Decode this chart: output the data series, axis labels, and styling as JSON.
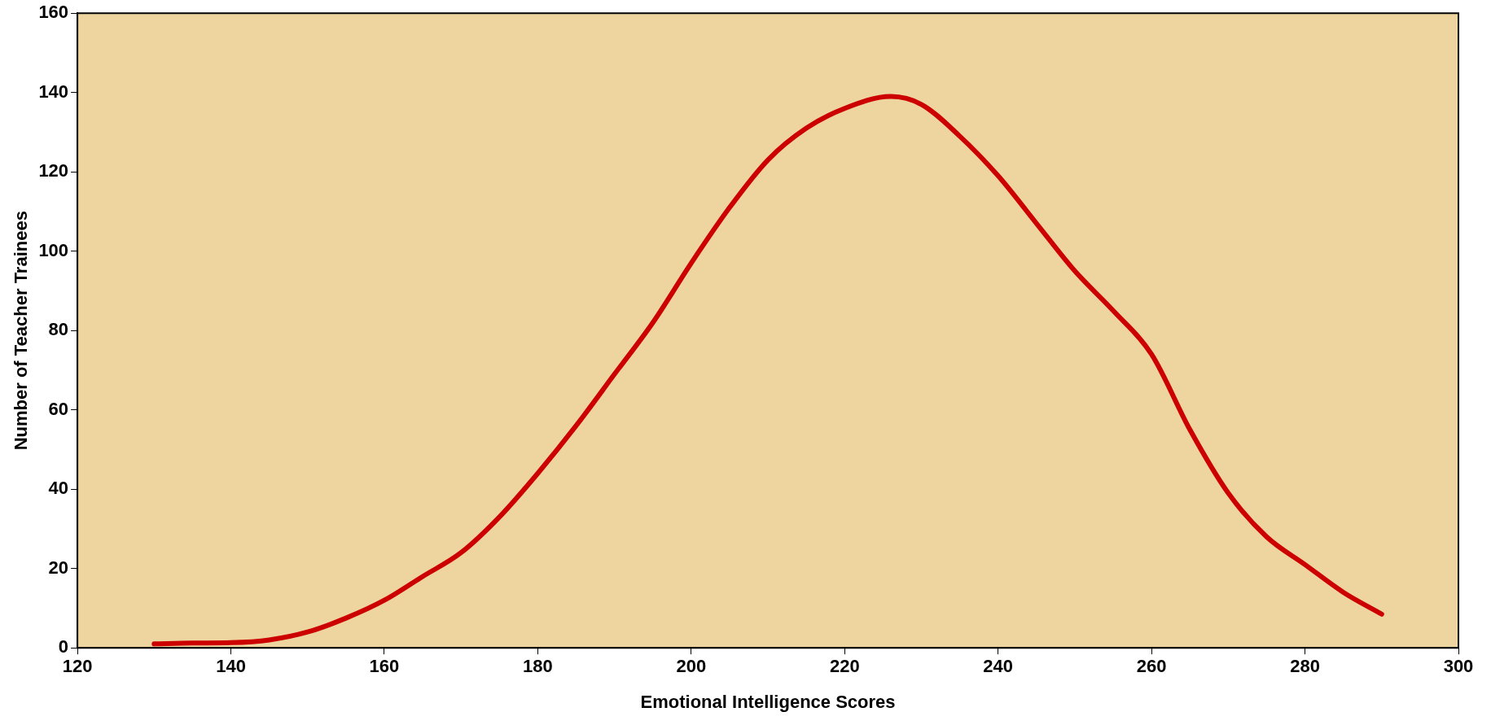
{
  "chart_data": {
    "type": "line",
    "xlabel": "Emotional Intelligence Scores",
    "ylabel": "Number of Teacher Trainees",
    "x": [
      130,
      135,
      140,
      145,
      150,
      155,
      160,
      165,
      170,
      175,
      180,
      185,
      190,
      195,
      200,
      205,
      210,
      215,
      220,
      226,
      230,
      235,
      240,
      245,
      250,
      255,
      260,
      265,
      270,
      275,
      280,
      285,
      290
    ],
    "series": [
      {
        "color": "#cc0000",
        "values": [
          1,
          1.2,
          1.3,
          2,
          4,
          7.5,
          12,
          18,
          24,
          33,
          44,
          56,
          69,
          82,
          97,
          111,
          123,
          131,
          136,
          139,
          137,
          129,
          119,
          107,
          95,
          85,
          74,
          55,
          39,
          28,
          21,
          14,
          8.5
        ]
      }
    ],
    "xlim": [
      120,
      300
    ],
    "xticks": [
      120,
      140,
      160,
      180,
      200,
      220,
      240,
      260,
      280,
      300
    ],
    "ylim": [
      0,
      160
    ],
    "yticks": [
      0,
      20,
      40,
      60,
      80,
      100,
      120,
      140,
      160
    ],
    "grid": false,
    "legend": false,
    "marker": "none",
    "line_style": "solid"
  }
}
